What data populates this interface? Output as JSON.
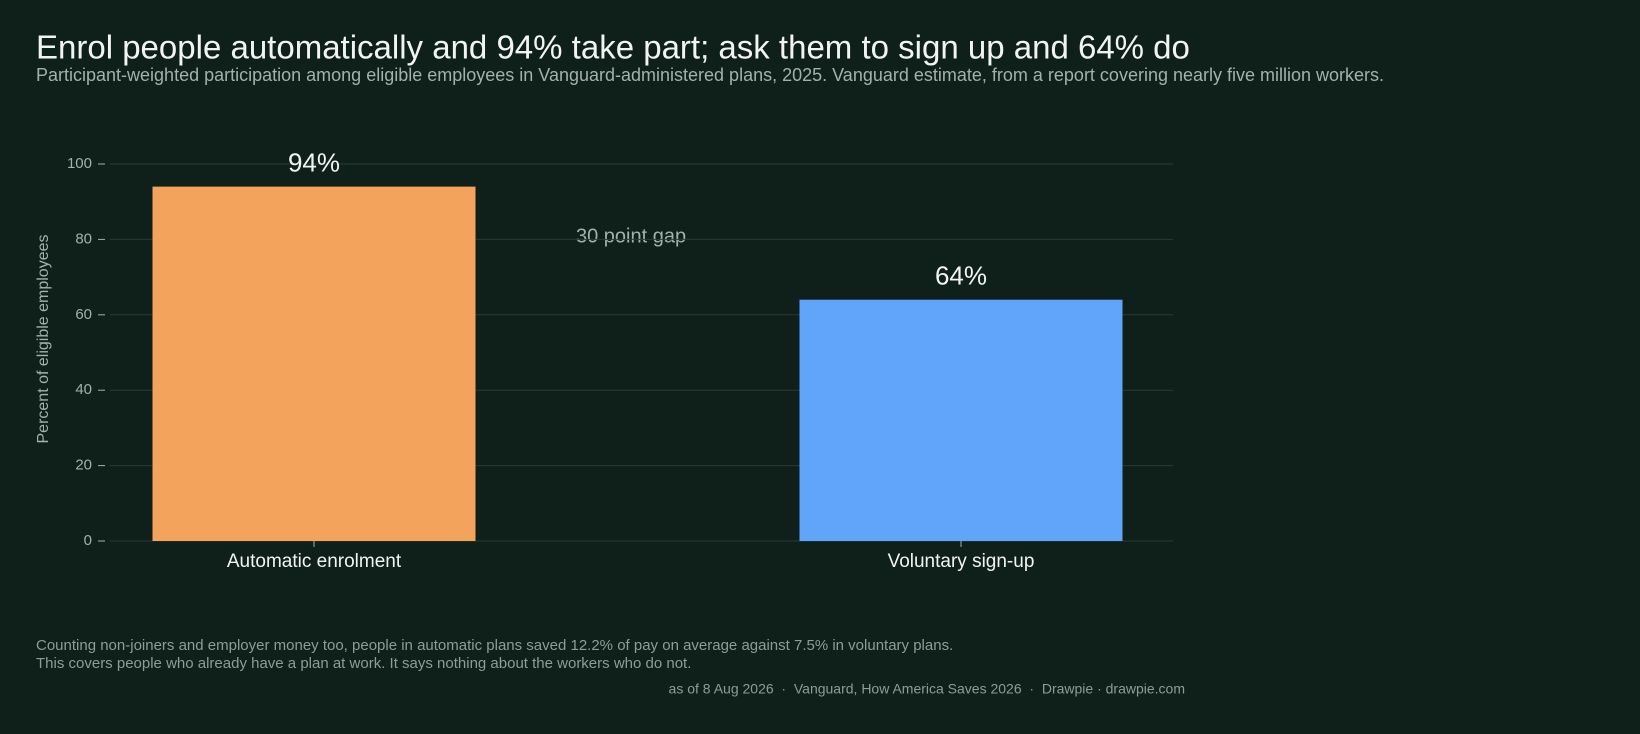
{
  "chart_data": {
    "type": "bar",
    "title": "Enrol people automatically and 94% take part; ask them to sign up and 64% do",
    "subtitle": "Participant-weighted participation among eligible employees in Vanguard-administered plans, 2025. Vanguard estimate, from a report covering nearly five million workers.",
    "y_label": "Percent of eligible employees",
    "categories": [
      "Automatic enrolment",
      "Voluntary sign-up"
    ],
    "values": [
      94,
      64
    ],
    "value_labels": [
      "94%",
      "64%"
    ],
    "colors": [
      "#f4a35c",
      "#60a5fa"
    ],
    "ylim": [
      0,
      100
    ],
    "yticks": [
      0,
      20,
      40,
      60,
      80,
      100
    ],
    "grid": true,
    "annotation": "30 point gap",
    "notes": [
      "Counting non-joiners and employer money too, people in automatic plans saved 12.2% of pay on average against 7.5% in voluntary plans.",
      "This covers people who already have a plan at work. It says nothing about the workers who do not."
    ],
    "source": "as of 8 Aug 2026  ·  Vanguard, How America Saves 2026  ·  Drawpie · drawpie.com"
  }
}
